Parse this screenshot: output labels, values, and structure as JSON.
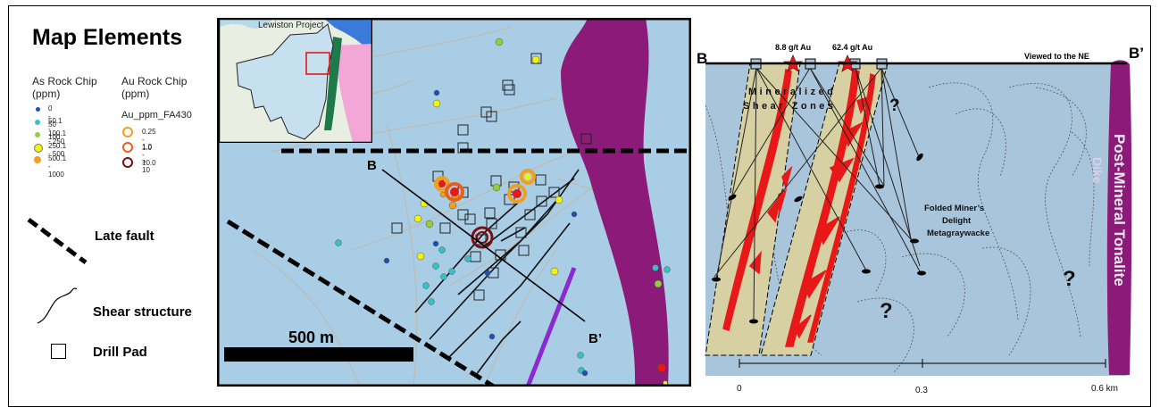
{
  "legend": {
    "title": "Map Elements",
    "as_header": "As Rock Chip (ppm)",
    "au_header": "Au Rock Chip (ppm)",
    "au_field": "Au_ppm_FA430",
    "as_classes": [
      {
        "label": "0 - 50",
        "color": "#1f4fb5"
      },
      {
        "label": "50.1 - 100",
        "color": "#35c2c7"
      },
      {
        "label": "100.1 - 250",
        "color": "#8fd13a"
      },
      {
        "label": "250.1 - 500",
        "color": "#f2f20a"
      },
      {
        "label": "500.1 - 1000",
        "color": "#f0a020"
      }
    ],
    "au_classes": [
      {
        "label": "0.25 - 1.0",
        "color": "#f0a020"
      },
      {
        "label": "1.0 - 10.0",
        "color": "#e8601a"
      },
      {
        "label": "> 10",
        "color": "#7a0d10"
      }
    ],
    "late_fault": "Late fault",
    "shear_structure": "Shear structure",
    "drill_pad": "Drill Pad"
  },
  "map": {
    "inset_label": "Lewiston Project",
    "scale_bar": "500 m",
    "section_start": "B",
    "section_end": "B’",
    "colors": {
      "background": "#a9cde4",
      "intrusion": "#8b1a78",
      "dike": "#8a2ad0"
    }
  },
  "section": {
    "left_label": "B",
    "right_label": "B’",
    "view_label": "Viewed to the NE",
    "assay_1": "8.8 g/t Au",
    "assay_2": "62.4 g/t Au",
    "shear_label_1": "Mineralized",
    "shear_label_2": "Shear Zones",
    "metagraywacke_1": "Folded Miner’s",
    "metagraywacke_2": "Delight",
    "metagraywacke_3": "Metagraywacke",
    "tonalite": "Post-Mineral Tonalite",
    "dike": "Dike",
    "question_mark": "?",
    "scale_ticks": [
      "0",
      "0.3",
      "0.6 km"
    ],
    "colors": {
      "background": "#a9c5db",
      "shear": "#d6d0a2",
      "vein": "#e81818",
      "tonalite": "#8b1a78"
    }
  }
}
